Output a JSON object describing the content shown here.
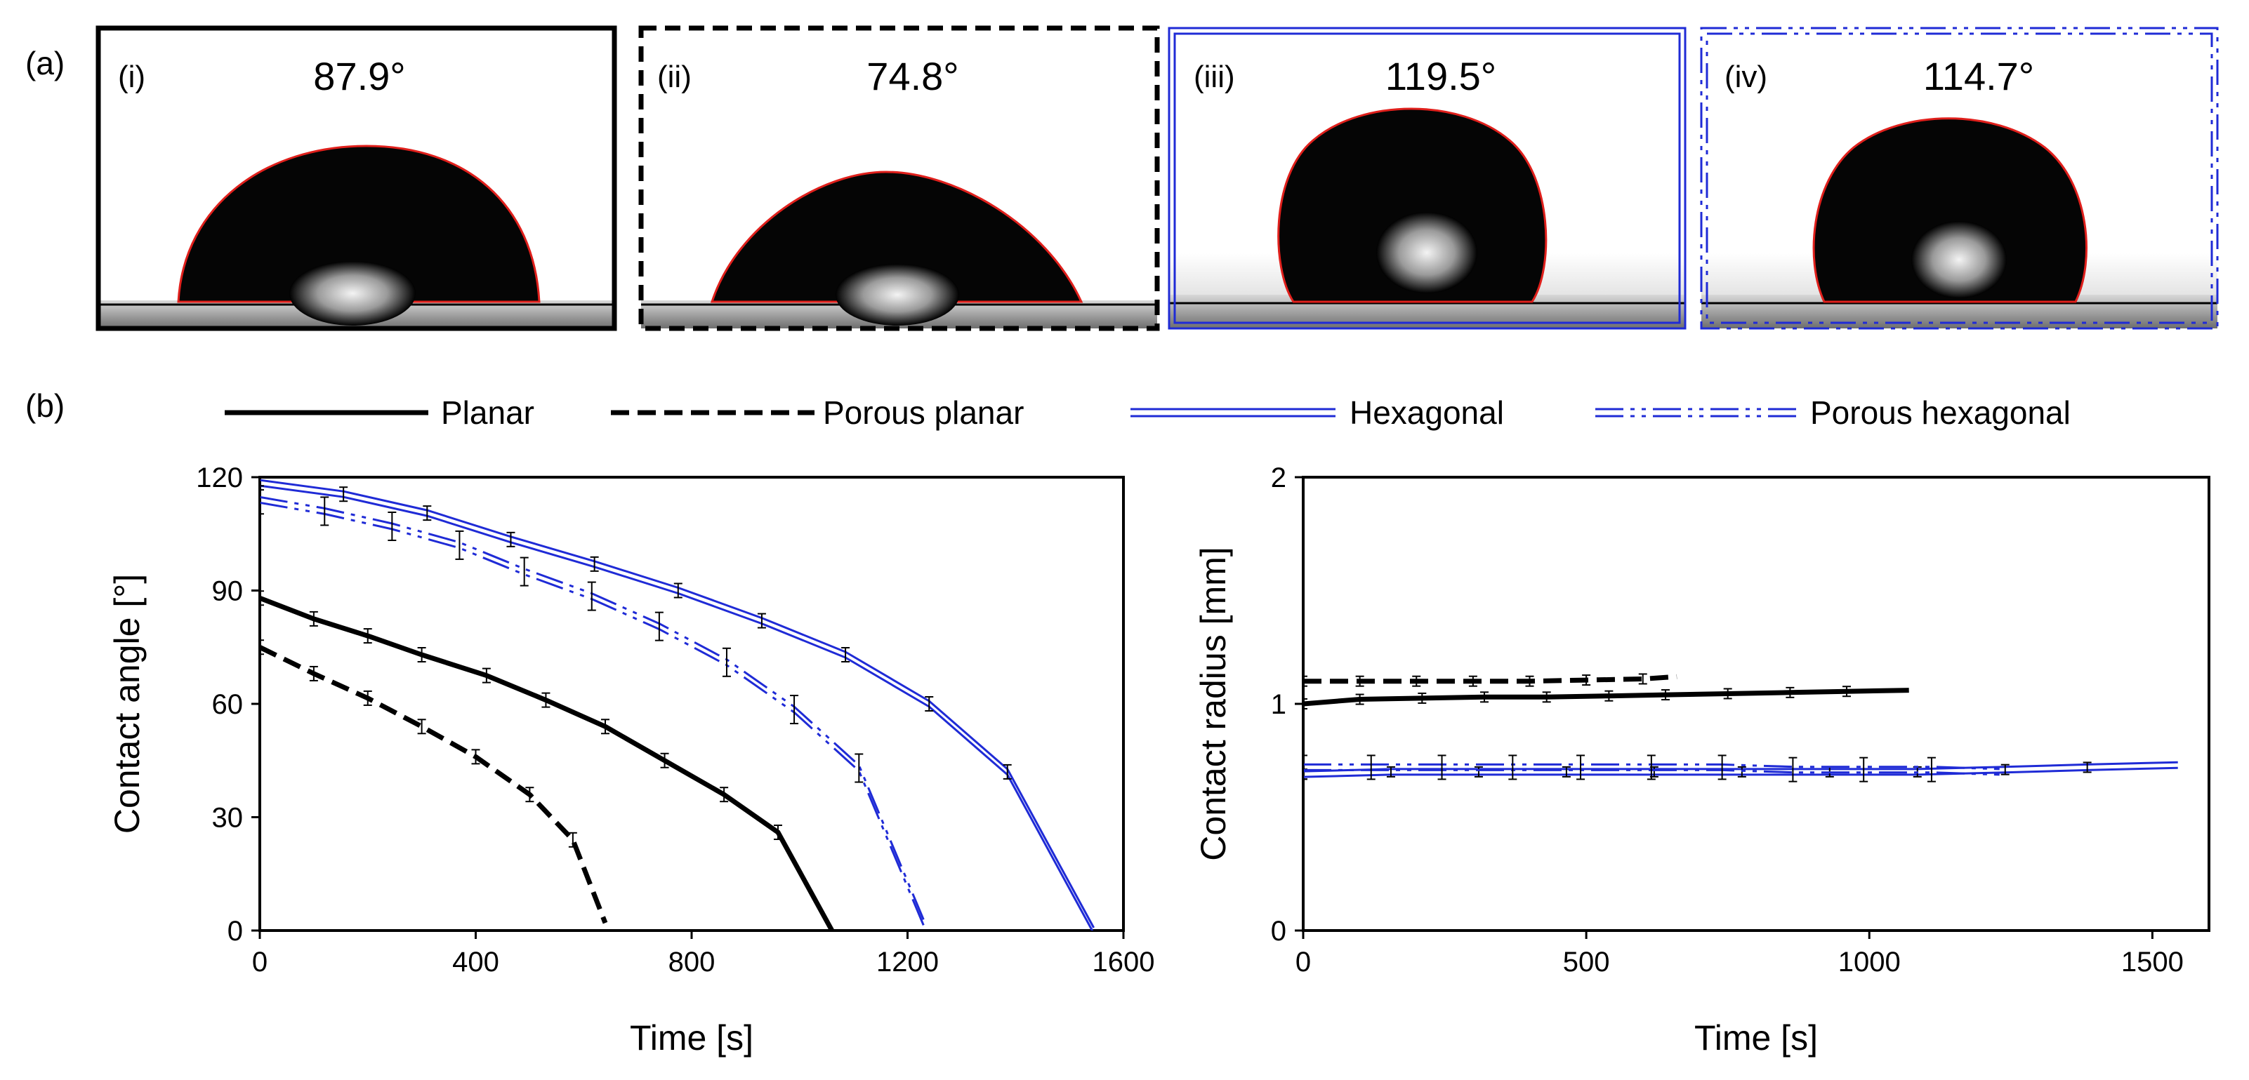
{
  "figure": {
    "panel_a_label": "(a)",
    "panel_b_label": "(b)"
  },
  "photos": [
    {
      "id": "i",
      "label": "(i)",
      "angle": "87.9°",
      "angle_value": 87.9,
      "surface": "Planar",
      "frame_style": "solid"
    },
    {
      "id": "ii",
      "label": "(ii)",
      "angle": "74.8°",
      "angle_value": 74.8,
      "surface": "Porous planar",
      "frame_style": "dashed"
    },
    {
      "id": "iii",
      "label": "(iii)",
      "angle": "119.5°",
      "angle_value": 119.5,
      "surface": "Hexagonal",
      "frame_style": "double"
    },
    {
      "id": "iv",
      "label": "(iv)",
      "angle": "114.7°",
      "angle_value": 114.7,
      "surface": "Porous hexagonal",
      "frame_style": "double-dashdot"
    }
  ],
  "legend": [
    {
      "key": "planar",
      "label": "Planar",
      "style": "solid"
    },
    {
      "key": "porous",
      "label": "Porous planar",
      "style": "dashed"
    },
    {
      "key": "hex",
      "label": "Hexagonal",
      "style": "double"
    },
    {
      "key": "porous_hex",
      "label": "Porous hexagonal",
      "style": "double-dashdot"
    }
  ],
  "colors": {
    "black": "#000000",
    "blue": "#1f2bd6",
    "drop_edge": "#e0201c"
  },
  "chart_data": [
    {
      "type": "line",
      "xlabel": "Time [s]",
      "ylabel": "Contact angle [°]",
      "xlim": [
        0,
        1600
      ],
      "ylim": [
        0,
        120
      ],
      "xticks": [
        0,
        400,
        800,
        1200,
        1600
      ],
      "yticks": [
        0,
        30,
        60,
        90,
        120
      ],
      "series": [
        {
          "name": "Planar",
          "key": "planar",
          "x": [
            0,
            100,
            200,
            300,
            420,
            530,
            640,
            750,
            860,
            960,
            1060
          ],
          "y": [
            88,
            82.5,
            78,
            73,
            67.5,
            61,
            54,
            45,
            36,
            26,
            0
          ],
          "errors": true
        },
        {
          "name": "Porous planar",
          "key": "porous",
          "x": [
            0,
            100,
            200,
            300,
            400,
            500,
            580,
            640
          ],
          "y": [
            75,
            68,
            61.5,
            54,
            46,
            36,
            24,
            2
          ],
          "errors": true
        },
        {
          "name": "Hexagonal",
          "key": "hex",
          "x": [
            0,
            155,
            310,
            465,
            620,
            775,
            930,
            1085,
            1240,
            1385,
            1545
          ],
          "y": [
            118.5,
            115.5,
            110.5,
            103.5,
            97,
            90,
            82,
            73,
            60,
            42,
            0
          ],
          "errors": true
        },
        {
          "name": "Porous hexagonal",
          "key": "porous_hex",
          "x": [
            0,
            120,
            245,
            370,
            490,
            615,
            740,
            865,
            990,
            1110,
            1230
          ],
          "y": [
            114,
            111,
            107,
            102,
            95,
            88.5,
            80.5,
            71,
            58.5,
            43,
            2
          ],
          "errors": true
        }
      ]
    },
    {
      "type": "line",
      "xlabel": "Time [s]",
      "ylabel": "Contact radius [mm]",
      "xlim": [
        0,
        1600
      ],
      "ylim": [
        0,
        2
      ],
      "xticks": [
        0,
        500,
        1000,
        1500
      ],
      "yticks": [
        0,
        1,
        2
      ],
      "series": [
        {
          "name": "Planar",
          "key": "planar",
          "x": [
            0,
            100,
            210,
            320,
            430,
            540,
            640,
            750,
            860,
            960,
            1070
          ],
          "y": [
            1.0,
            1.02,
            1.025,
            1.03,
            1.03,
            1.035,
            1.04,
            1.045,
            1.05,
            1.055,
            1.06
          ],
          "errors": true
        },
        {
          "name": "Porous planar",
          "key": "porous",
          "x": [
            0,
            100,
            200,
            300,
            400,
            500,
            600,
            660
          ],
          "y": [
            1.1,
            1.1,
            1.1,
            1.1,
            1.1,
            1.105,
            1.11,
            1.12
          ],
          "errors": true
        },
        {
          "name": "Hexagonal",
          "key": "hex",
          "x": [
            0,
            155,
            310,
            465,
            620,
            775,
            930,
            1085,
            1240,
            1385,
            1545
          ],
          "y": [
            0.69,
            0.7,
            0.7,
            0.7,
            0.7,
            0.7,
            0.7,
            0.7,
            0.71,
            0.72,
            0.73
          ],
          "errors": true
        },
        {
          "name": "Porous hexagonal",
          "key": "porous_hex",
          "x": [
            0,
            120,
            245,
            370,
            490,
            615,
            740,
            865,
            990,
            1110,
            1230
          ],
          "y": [
            0.72,
            0.72,
            0.72,
            0.72,
            0.72,
            0.72,
            0.72,
            0.71,
            0.71,
            0.71,
            0.7
          ],
          "errors": true
        }
      ]
    }
  ]
}
